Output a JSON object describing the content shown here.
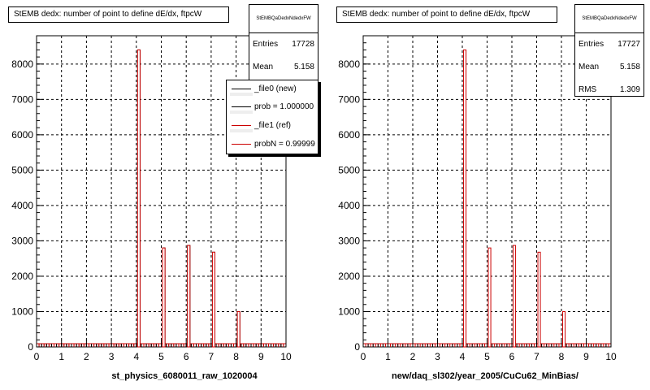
{
  "chart_data": [
    {
      "type": "bar",
      "title": "StEMB dedx: number of point to define dE/dx, ftpcW",
      "xlabel": "st_physics_6080011_raw_1020004",
      "ylabel": "",
      "xlim": [
        0,
        10
      ],
      "ylim": [
        0,
        8800
      ],
      "xticks": [
        "0",
        "1",
        "2",
        "3",
        "4",
        "5",
        "6",
        "7",
        "8",
        "9",
        "10"
      ],
      "yticks": [
        "0",
        "1000",
        "2000",
        "3000",
        "4000",
        "5000",
        "6000",
        "7000",
        "8000"
      ],
      "grid": true,
      "stats": {
        "name": "StEMBQaDedxNdedxFW",
        "entries_label": "Entries",
        "entries": "17728",
        "mean_label": "Mean",
        "mean": "5.158"
      },
      "legend": {
        "placement": "top-right",
        "entries": [
          {
            "label": "_file0 (new)",
            "color": "#000000"
          },
          {
            "label": "prob = 1.000000",
            "color": "#000000"
          },
          {
            "label": "_file1 (ref)",
            "color": "#cc0000"
          },
          {
            "label": "probN = 0.99999",
            "color": "#cc0000"
          }
        ]
      },
      "series": [
        {
          "name": "_file0 (new)",
          "color": "#000000",
          "x": [
            4.1,
            5.1,
            6.1,
            7.1,
            8.1
          ],
          "values": [
            8400,
            2800,
            2870,
            2680,
            1000
          ]
        },
        {
          "name": "_file1 (ref)",
          "color": "#cc0000",
          "x": [
            4.1,
            5.1,
            6.1,
            7.1,
            8.1
          ],
          "values": [
            8400,
            2800,
            2870,
            2680,
            1000
          ]
        }
      ]
    },
    {
      "type": "bar",
      "title": "StEMB dedx: number of point to define dE/dx, ftpcW",
      "xlabel": "new/daq_sl302/year_2005/CuCu62_MinBias/",
      "ylabel": "",
      "xlim": [
        0,
        10
      ],
      "ylim": [
        0,
        8800
      ],
      "xticks": [
        "0",
        "1",
        "2",
        "3",
        "4",
        "5",
        "6",
        "7",
        "8",
        "9",
        "10"
      ],
      "yticks": [
        "0",
        "1000",
        "2000",
        "3000",
        "4000",
        "5000",
        "6000",
        "7000",
        "8000"
      ],
      "grid": true,
      "stats": {
        "name": "StEMBQaDedxNdedxFW",
        "entries_label": "Entries",
        "entries": "17727",
        "mean_label": "Mean",
        "mean": "5.158",
        "rms_label": "RMS",
        "rms": "1.309"
      },
      "series": [
        {
          "name": "",
          "color": "#cc0000",
          "x": [
            4.1,
            5.1,
            6.1,
            7.1,
            8.1
          ],
          "values": [
            8400,
            2800,
            2870,
            2680,
            1000
          ]
        }
      ]
    }
  ],
  "colors": {
    "hist_line": "#cc0000",
    "axis": "#000000",
    "grid": "#000000"
  }
}
